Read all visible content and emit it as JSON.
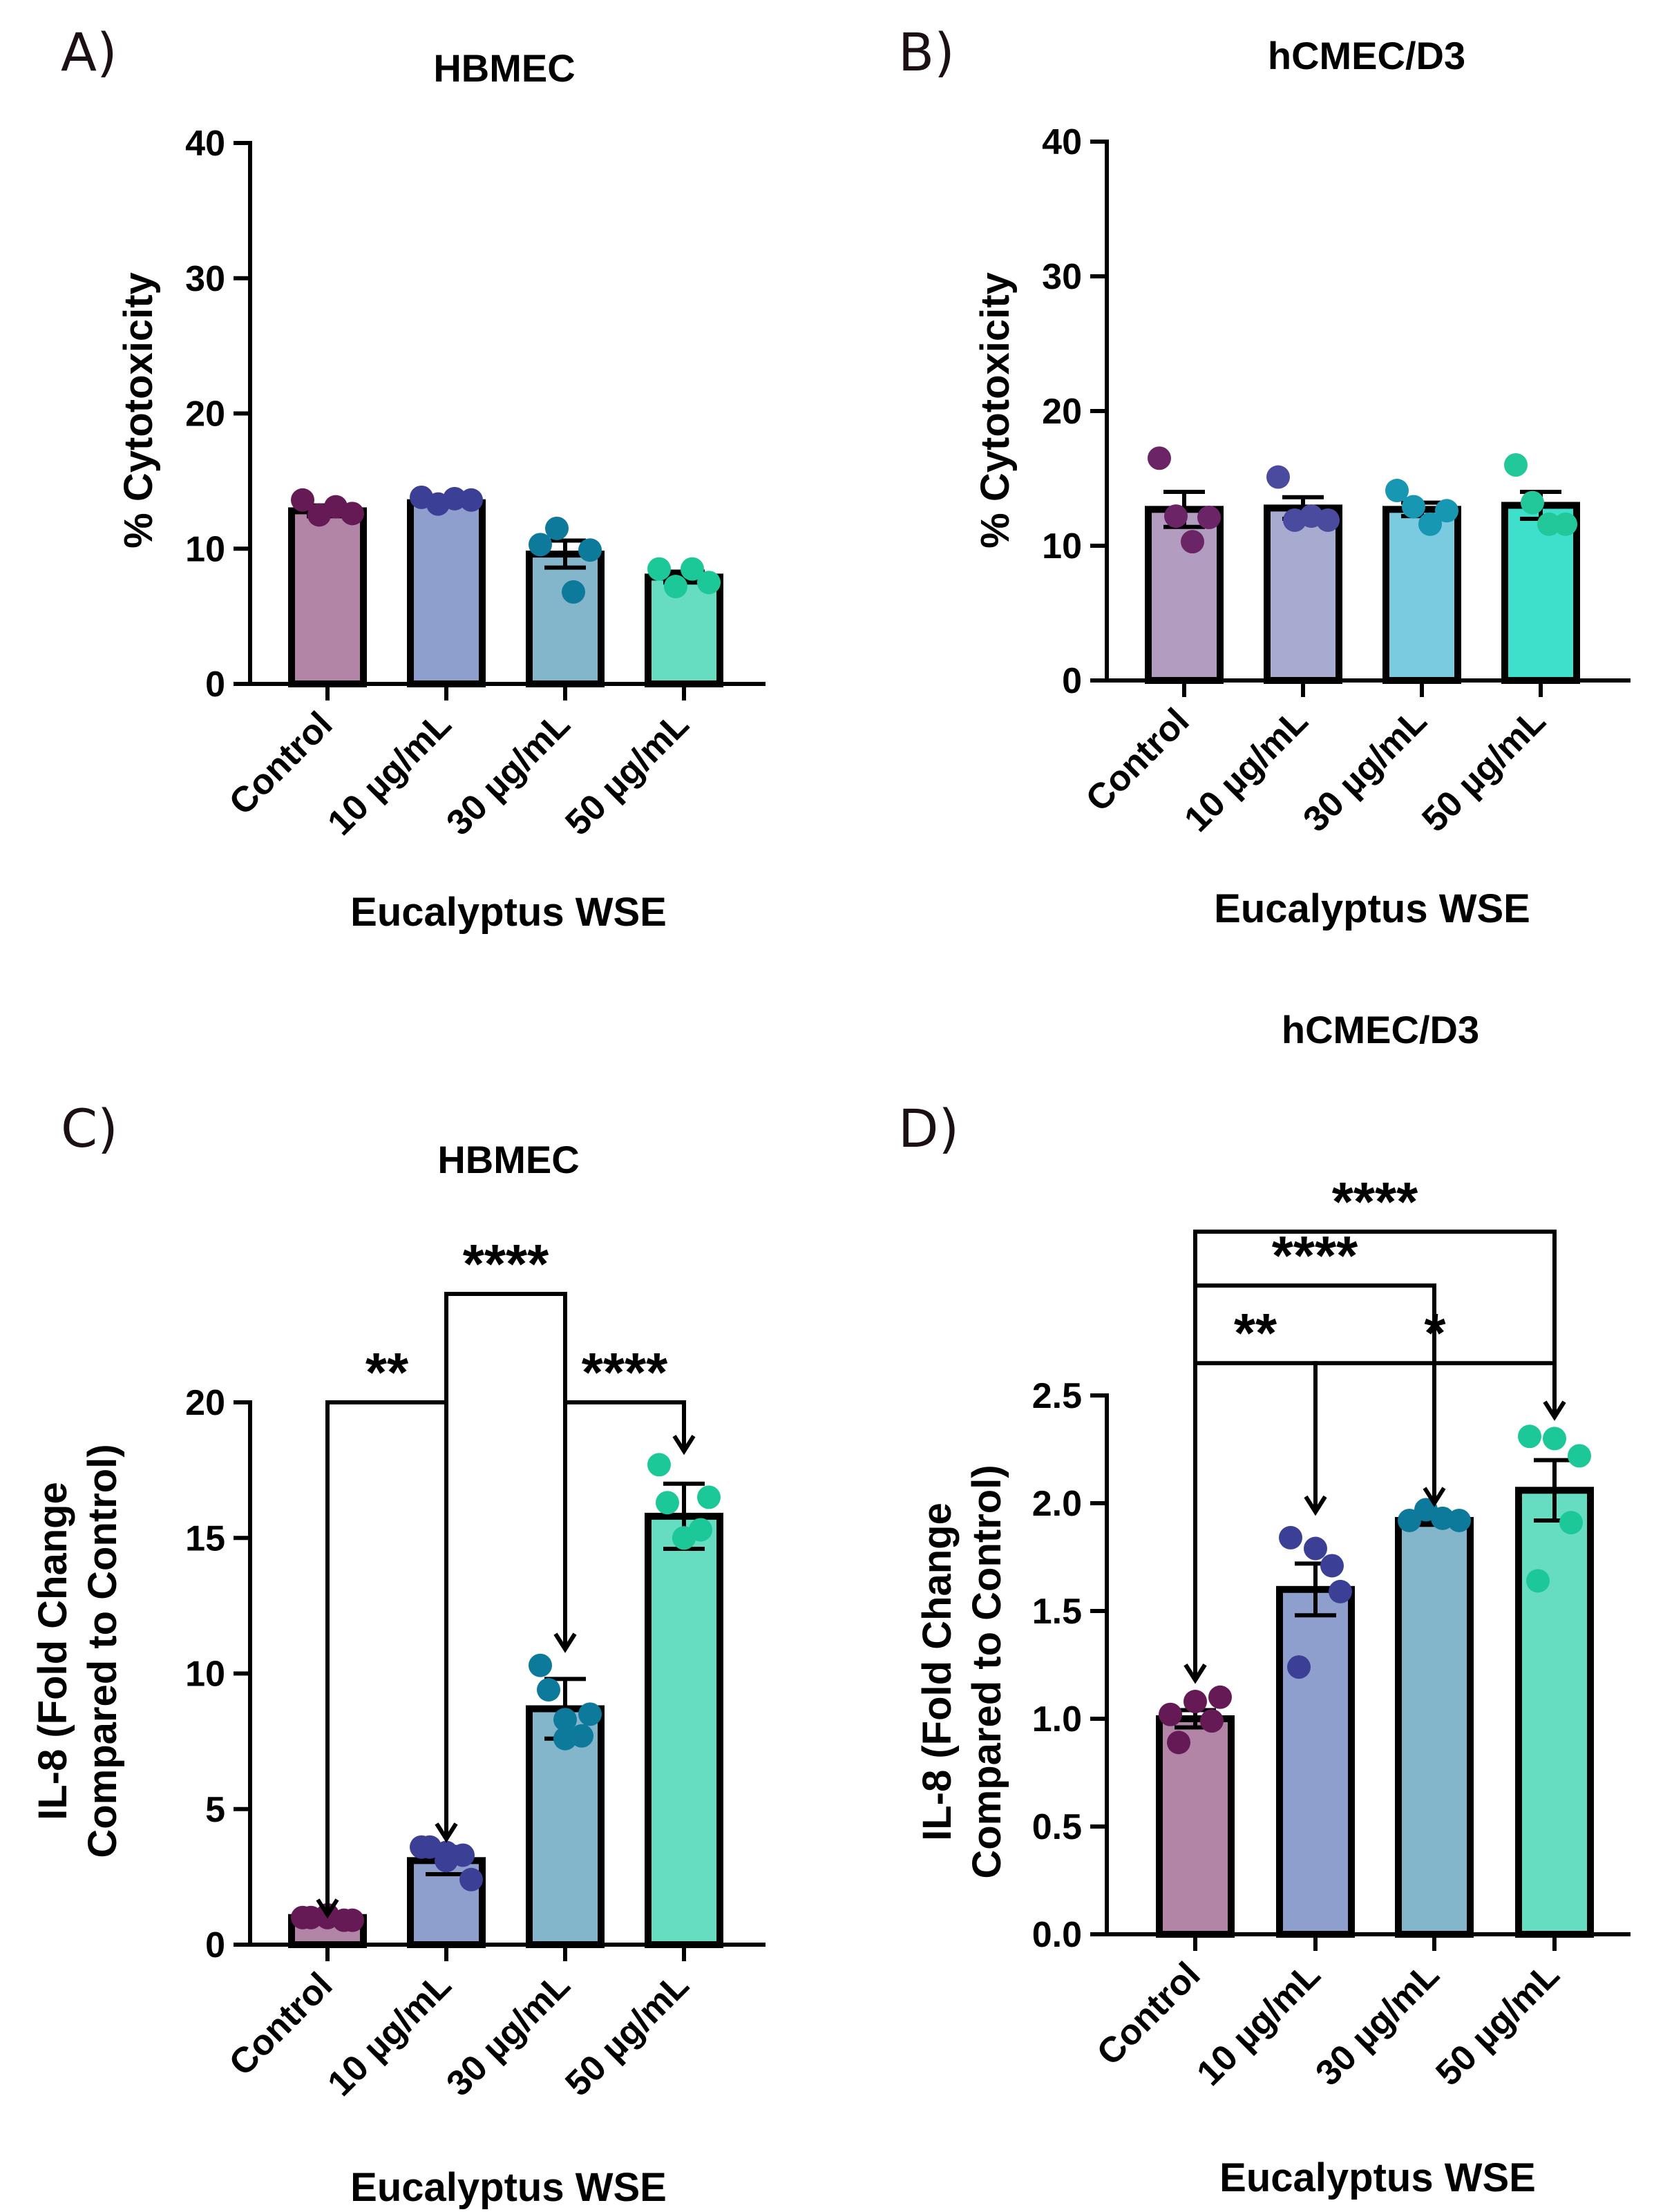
{
  "chart_data": [
    {
      "panel": "A)",
      "type": "bar",
      "title": "HBMEC",
      "xlabel": "Eucalyptus WSE",
      "ylabel": "% Cytotoxicity",
      "categories": [
        "Control",
        "10 µg/mL",
        "30 µg/mL",
        "50 µg/mL"
      ],
      "values": [
        12.8,
        13.4,
        9.6,
        7.9
      ],
      "errors": [
        0.4,
        0.2,
        1.0,
        0.4
      ],
      "points": [
        [
          13.6,
          12.5,
          13.1,
          12.6
        ],
        [
          13.8,
          13.3,
          13.7,
          13.6
        ],
        [
          10.3,
          11.5,
          6.8,
          9.9
        ],
        [
          8.5,
          7.2,
          8.5,
          7.5
        ]
      ],
      "ylim": [
        0,
        40
      ],
      "yticks": [
        "0",
        "10",
        "20",
        "30",
        "40"
      ],
      "ytick_values": [
        0,
        10,
        20,
        30,
        40
      ],
      "bar_colors": [
        "#b285a7",
        "#8e9fce",
        "#83b6cb",
        "#66dcc0"
      ],
      "dot_colors": [
        "#661a55",
        "#3b3f95",
        "#0d7a9c",
        "#1cc898"
      ],
      "significance": []
    },
    {
      "panel": "B)",
      "type": "bar",
      "title": "hCMEC/D3",
      "xlabel": "Eucalyptus WSE",
      "ylabel": "% Cytotoxicity",
      "categories": [
        "Control",
        "10 µg/mL",
        "30 µg/mL",
        "50 µg/mL"
      ],
      "values": [
        12.7,
        12.8,
        12.7,
        13.0
      ],
      "errors": [
        1.3,
        0.8,
        0.5,
        1.0
      ],
      "points": [
        [
          16.5,
          12.2,
          10.3,
          12.1
        ],
        [
          15.1,
          11.9,
          12.2,
          11.9
        ],
        [
          14.1,
          12.9,
          11.6,
          12.6
        ],
        [
          16.0,
          13.2,
          11.6,
          11.6
        ]
      ],
      "ylim": [
        0,
        40
      ],
      "yticks": [
        "0",
        "10",
        "20",
        "30",
        "40"
      ],
      "ytick_values": [
        0,
        10,
        20,
        30,
        40
      ],
      "bar_colors": [
        "#b29cc0",
        "#a8abd0",
        "#7bcbe0",
        "#3ee0cc"
      ],
      "dot_colors": [
        "#6b2466",
        "#4a4a9e",
        "#1797b2",
        "#22c79a"
      ],
      "significance": []
    },
    {
      "panel": "C)",
      "type": "bar",
      "title": "HBMEC",
      "xlabel": "Eucalyptus WSE",
      "ylabel": [
        "IL-8 (Fold Change",
        "Compared to Control)"
      ],
      "categories": [
        "Control",
        "10 µg/mL",
        "30 µg/mL",
        "50 µg/mL"
      ],
      "values": [
        1.0,
        3.1,
        8.7,
        15.8
      ],
      "errors": [
        0.1,
        0.5,
        1.1,
        1.2
      ],
      "points": [
        [
          1.0,
          0.9,
          1.1,
          1.0,
          0.9,
          1.0
        ],
        [
          3.6,
          2.4,
          3.4,
          3.6,
          3.3,
          3.1
        ],
        [
          10.3,
          8.5,
          7.6,
          9.4,
          7.7,
          8.3
        ],
        [
          17.7,
          16.5,
          15.0,
          16.3,
          15.3,
          15.0
        ]
      ],
      "ylim": [
        0,
        20
      ],
      "yticks": [
        "0",
        "5",
        "10",
        "15",
        "20"
      ],
      "ytick_values": [
        0,
        5,
        10,
        15,
        20
      ],
      "bar_colors": [
        "#b285a7",
        "#8e9fce",
        "#83b6cb",
        "#66dcc0"
      ],
      "dot_colors": [
        "#661a55",
        "#3b3f95",
        "#0d7a9c",
        "#1cc898"
      ],
      "significance": [
        {
          "from": 0,
          "to": 1,
          "label": "**",
          "level": 20,
          "arrow_from": 1.1,
          "arrow_to": 3.9
        },
        {
          "from": 1,
          "to": 2,
          "label": "****",
          "level": 24,
          "arrow_from": 3.9,
          "arrow_to": 10.9
        },
        {
          "from": 2,
          "to": 3,
          "label": "****",
          "level": 20,
          "arrow_from": 10.9,
          "arrow_to": 18.2
        }
      ]
    },
    {
      "panel": "D)",
      "type": "bar",
      "title": "hCMEC/D3",
      "xlabel": "Eucalyptus WSE",
      "ylabel": [
        "IL-8 (Fold Change",
        "Compared to Control)"
      ],
      "categories": [
        "Control",
        "10 µg/mL",
        "30 µg/mL",
        "50 µg/mL"
      ],
      "values": [
        1.0,
        1.6,
        1.92,
        2.06
      ],
      "errors": [
        0.04,
        0.12,
        0.02,
        0.14
      ],
      "points": [
        [
          1.02,
          1.1,
          0.89,
          0.99,
          1.08
        ],
        [
          1.84,
          1.59,
          1.24,
          1.71,
          1.79
        ],
        [
          1.92,
          1.97,
          1.93,
          1.92
        ],
        [
          2.31,
          2.22,
          1.64,
          1.91,
          2.3
        ]
      ],
      "ylim": [
        0,
        2.5
      ],
      "yticks": [
        "0.0",
        "0.5",
        "1.0",
        "1.5",
        "2.0",
        "2.5"
      ],
      "ytick_values": [
        0,
        0.5,
        1.0,
        1.5,
        2.0,
        2.5
      ],
      "bar_colors": [
        "#b285a7",
        "#8e9fce",
        "#83b6cb",
        "#66dcc0"
      ],
      "dot_colors": [
        "#661a55",
        "#3b3f95",
        "#0d7a9c",
        "#1cc898"
      ],
      "significance": [
        {
          "from": 0,
          "to": 3,
          "label": "****",
          "level": 3.26,
          "arrow_from": 1.18,
          "arrow_to": 2.4
        },
        {
          "from": 0,
          "to": 2,
          "label": "****",
          "level": 3.01,
          "arrow_from": 1.18,
          "arrow_to": 2.0
        },
        {
          "from": 0,
          "to": 1,
          "label": "**",
          "level": 2.65,
          "arrow_from": 1.18,
          "arrow_to": 1.96
        },
        {
          "from": 1,
          "to": 3,
          "label": "*",
          "level": 2.65,
          "arrow_from": 1.96,
          "arrow_to": 2.4
        }
      ]
    }
  ]
}
